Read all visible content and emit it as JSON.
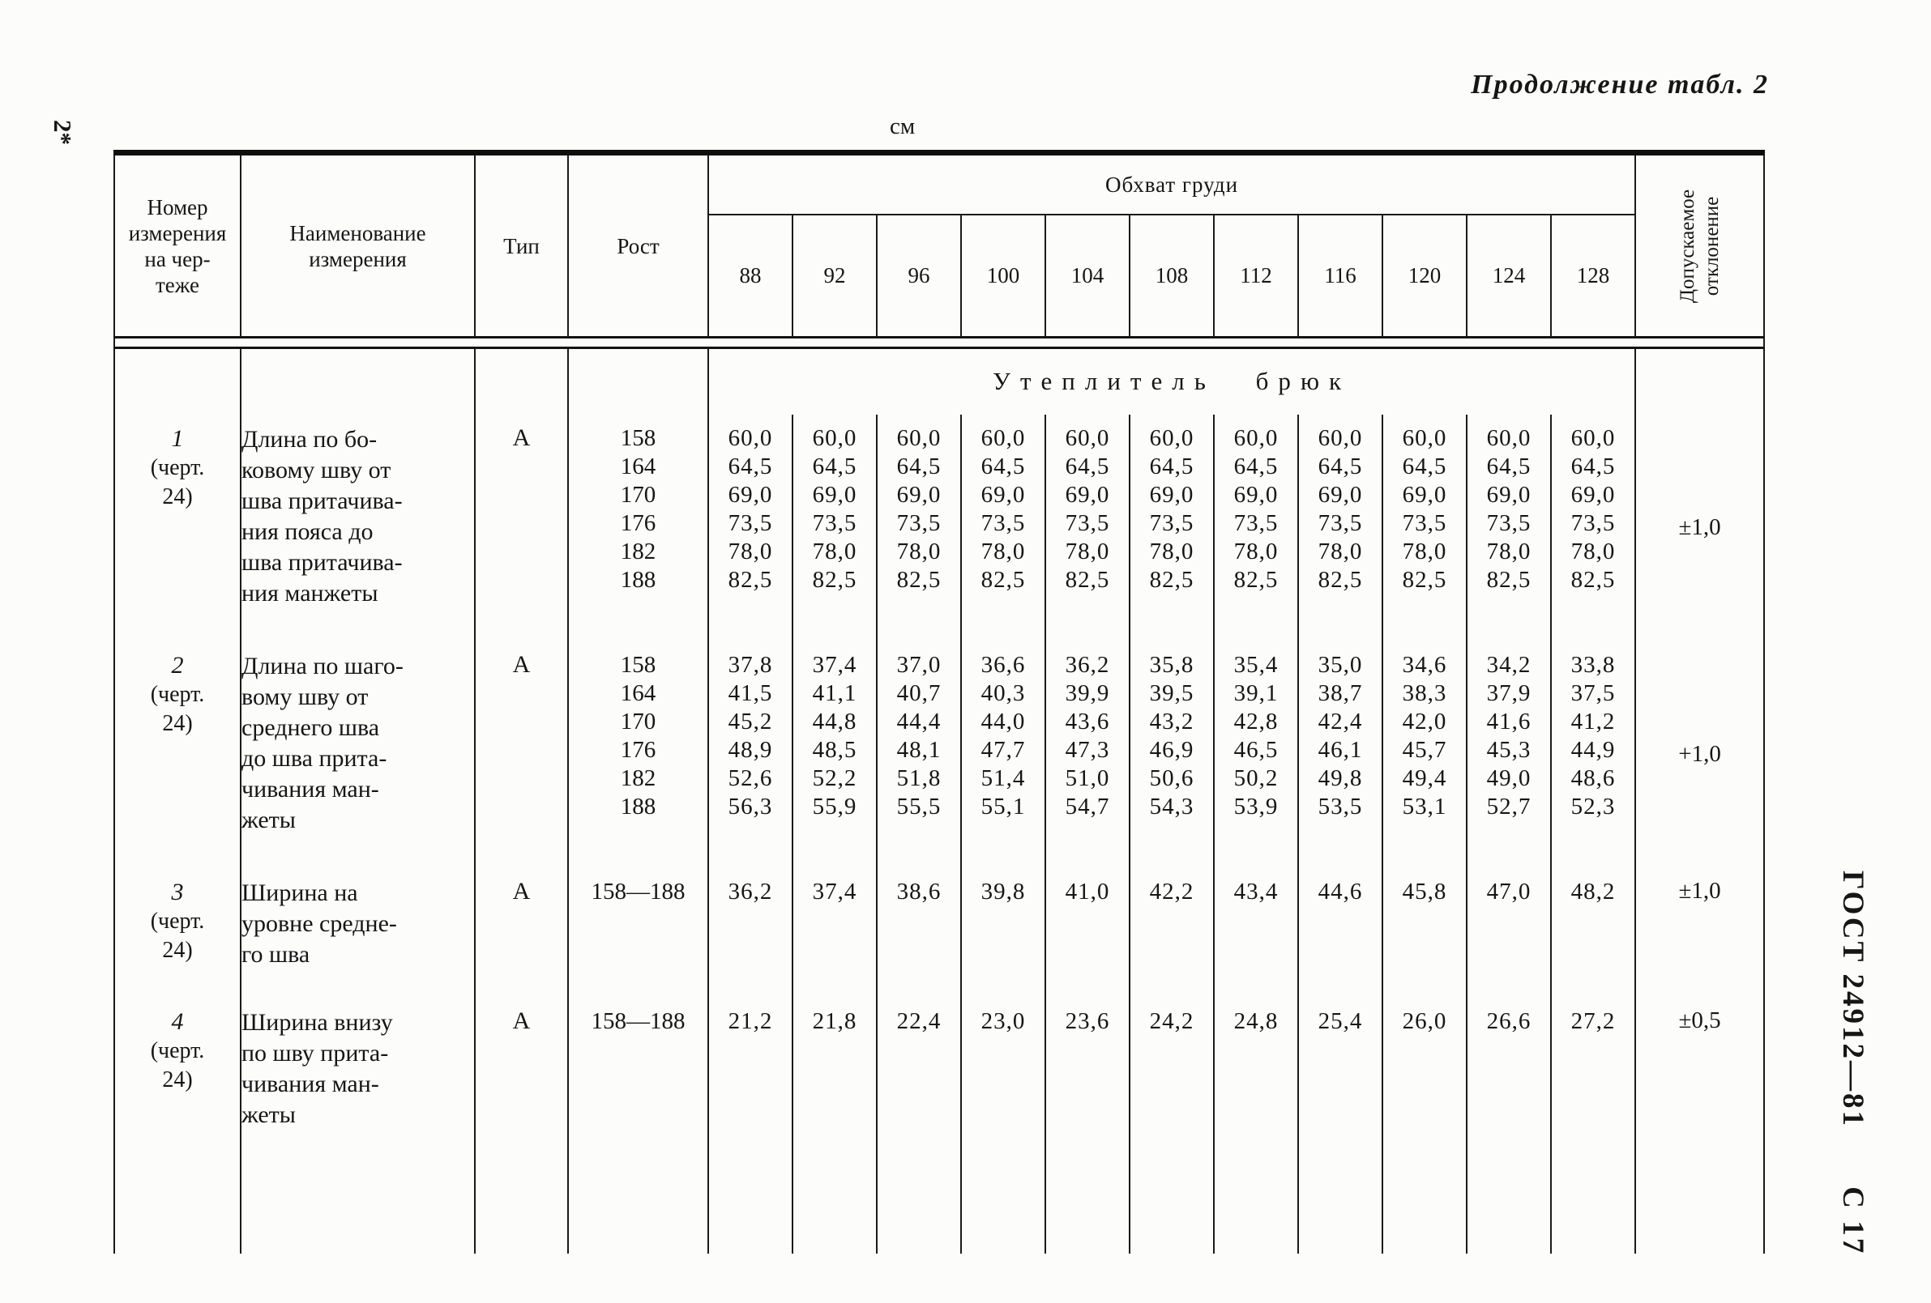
{
  "page": {
    "continuation_note": "Продолжение табл. 2",
    "units_label": "см",
    "left_margin_note": "2*",
    "right_margin_doc": "ГОСТ 24912—81",
    "right_margin_page": "С 17"
  },
  "table": {
    "header": {
      "col_number": "Номер\nизмерения\nна чер-\nтеже",
      "col_name": "Наименование\nизмерения",
      "col_type": "Тип",
      "col_rost": "Рост",
      "chest_group": "Обхват груди",
      "chest_sizes": [
        "88",
        "92",
        "96",
        "100",
        "104",
        "108",
        "112",
        "116",
        "120",
        "124",
        "128"
      ],
      "col_deviation": "Допускаемое\nотклонение"
    },
    "section_title": "Утеплитель брюк",
    "rows": [
      {
        "number": "1",
        "number_note": [
          "(черт.",
          "24)"
        ],
        "name": [
          "Длина по бо-",
          "ковому шву от",
          "шва притачива-",
          "ния пояса до",
          "шва притачива-",
          "ния манжеты"
        ],
        "type": "А",
        "rost": [
          "158",
          "164",
          "170",
          "176",
          "182",
          "188"
        ],
        "values": [
          [
            "60,0",
            "60,0",
            "60,0",
            "60,0",
            "60,0",
            "60,0",
            "60,0",
            "60,0",
            "60,0",
            "60,0",
            "60,0"
          ],
          [
            "64,5",
            "64,5",
            "64,5",
            "64,5",
            "64,5",
            "64,5",
            "64,5",
            "64,5",
            "64,5",
            "64,5",
            "64,5"
          ],
          [
            "69,0",
            "69,0",
            "69,0",
            "69,0",
            "69,0",
            "69,0",
            "69,0",
            "69,0",
            "69,0",
            "69,0",
            "69,0"
          ],
          [
            "73,5",
            "73,5",
            "73,5",
            "73,5",
            "73,5",
            "73,5",
            "73,5",
            "73,5",
            "73,5",
            "73,5",
            "73,5"
          ],
          [
            "78,0",
            "78,0",
            "78,0",
            "78,0",
            "78,0",
            "78,0",
            "78,0",
            "78,0",
            "78,0",
            "78,0",
            "78,0"
          ],
          [
            "82,5",
            "82,5",
            "82,5",
            "82,5",
            "82,5",
            "82,5",
            "82,5",
            "82,5",
            "82,5",
            "82,5",
            "82,5"
          ]
        ],
        "deviation": "±1,0"
      },
      {
        "number": "2",
        "number_note": [
          "(черт.",
          "24)"
        ],
        "name": [
          "Длина по шаго-",
          "вому шву от",
          "среднего шва",
          "до шва  прита-",
          "чивания ман-",
          "жеты"
        ],
        "type": "А",
        "rost": [
          "158",
          "164",
          "170",
          "176",
          "182",
          "188"
        ],
        "values": [
          [
            "37,8",
            "37,4",
            "37,0",
            "36,6",
            "36,2",
            "35,8",
            "35,4",
            "35,0",
            "34,6",
            "34,2",
            "33,8"
          ],
          [
            "41,5",
            "41,1",
            "40,7",
            "40,3",
            "39,9",
            "39,5",
            "39,1",
            "38,7",
            "38,3",
            "37,9",
            "37,5"
          ],
          [
            "45,2",
            "44,8",
            "44,4",
            "44,0",
            "43,6",
            "43,2",
            "42,8",
            "42,4",
            "42,0",
            "41,6",
            "41,2"
          ],
          [
            "48,9",
            "48,5",
            "48,1",
            "47,7",
            "47,3",
            "46,9",
            "46,5",
            "46,1",
            "45,7",
            "45,3",
            "44,9"
          ],
          [
            "52,6",
            "52,2",
            "51,8",
            "51,4",
            "51,0",
            "50,6",
            "50,2",
            "49,8",
            "49,4",
            "49,0",
            "48,6"
          ],
          [
            "56,3",
            "55,9",
            "55,5",
            "55,1",
            "54,7",
            "54,3",
            "53,9",
            "53,5",
            "53,1",
            "52,7",
            "52,3"
          ]
        ],
        "deviation": "+1,0"
      },
      {
        "number": "3",
        "number_note": [
          "(черт.",
          "24)"
        ],
        "name": [
          "Ширина  на",
          "уровне средне-",
          "го шва"
        ],
        "type": "А",
        "rost": [
          "158—188"
        ],
        "values": [
          [
            "36,2",
            "37,4",
            "38,6",
            "39,8",
            "41,0",
            "42,2",
            "43,4",
            "44,6",
            "45,8",
            "47,0",
            "48,2"
          ]
        ],
        "deviation": "±1,0"
      },
      {
        "number": "4",
        "number_note": [
          "(черт.",
          "24)"
        ],
        "name": [
          "Ширина внизу",
          "по шву прита-",
          "чивания ман-",
          "жеты"
        ],
        "type": "А",
        "rost": [
          "158—188"
        ],
        "values": [
          [
            "21,2",
            "21,8",
            "22,4",
            "23,0",
            "23,6",
            "24,2",
            "24,8",
            "25,4",
            "26,0",
            "26,6",
            "27,2"
          ]
        ],
        "deviation": "±0,5"
      }
    ]
  }
}
